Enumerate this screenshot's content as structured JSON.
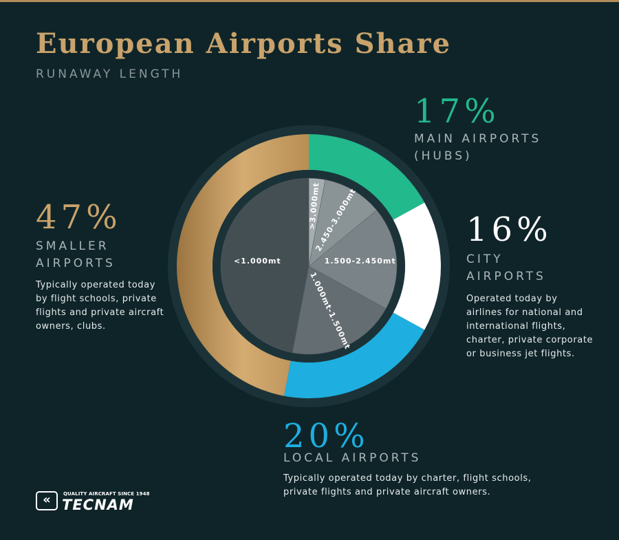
{
  "title": "European Airports Share",
  "subtitle": "RUNAWAY LENGTH",
  "colors": {
    "background": "#0f2429",
    "title": "#c9a36b",
    "hubs": "#22b98c",
    "city": "#ffffff",
    "local": "#1eaee0",
    "smaller": "#c49a5c"
  },
  "chart_data": [
    {
      "type": "pie",
      "variant": "donut",
      "series": [
        {
          "name": "MAIN AIRPORTS (HUBS)",
          "value": 17,
          "color": "#22b98c"
        },
        {
          "name": "CITY AIRPORTS",
          "value": 16,
          "color": "#ffffff"
        },
        {
          "name": "LOCAL AIRPORTS",
          "value": 20,
          "color": "#1eaee0"
        },
        {
          "name": "SMALLER AIRPORTS",
          "value": 47,
          "color": "#c49a5c"
        }
      ]
    },
    {
      "type": "pie",
      "variant": "inner",
      "series": [
        {
          "name": ">3.000mt",
          "value": 3,
          "color": "#a5adb0"
        },
        {
          "name": "2.450-3.000mt",
          "value": 11,
          "color": "#8a9396"
        },
        {
          "name": "1.500-2.450mt",
          "value": 19,
          "color": "#7a8387"
        },
        {
          "name": "1.000mt-1.500mt",
          "value": 20,
          "color": "#646d72"
        },
        {
          "name": "<1.000mt",
          "value": 47,
          "color": "#444f54"
        }
      ]
    }
  ],
  "callouts": {
    "hubs": {
      "pct": "17%",
      "cat_line1": "MAIN AIRPORTS",
      "cat_line2": "(HUBS)"
    },
    "city": {
      "pct": "16%",
      "cat_line1": "CITY",
      "cat_line2": "AIRPORTS",
      "desc": [
        "Operated today by",
        "airlines for national and",
        "international flights,",
        "charter, private corporate",
        "or business jet flights."
      ]
    },
    "local": {
      "pct": "20%",
      "cat_line1": "LOCAL AIRPORTS",
      "desc": [
        "Typically operated today by charter, flight schools,",
        "private flights and private aircraft owners."
      ]
    },
    "smaller": {
      "pct": "47%",
      "cat_line1": "SMALLER",
      "cat_line2": "AIRPORTS",
      "desc": [
        "Typically operated today",
        "by flight schools, private",
        "flights and private aircraft",
        "owners, clubs."
      ]
    }
  },
  "logo": {
    "tagline": "QUALITY AIRCRAFT SINCE 1948",
    "name": "TECNAM",
    "icon": "double-chevron-icon"
  }
}
